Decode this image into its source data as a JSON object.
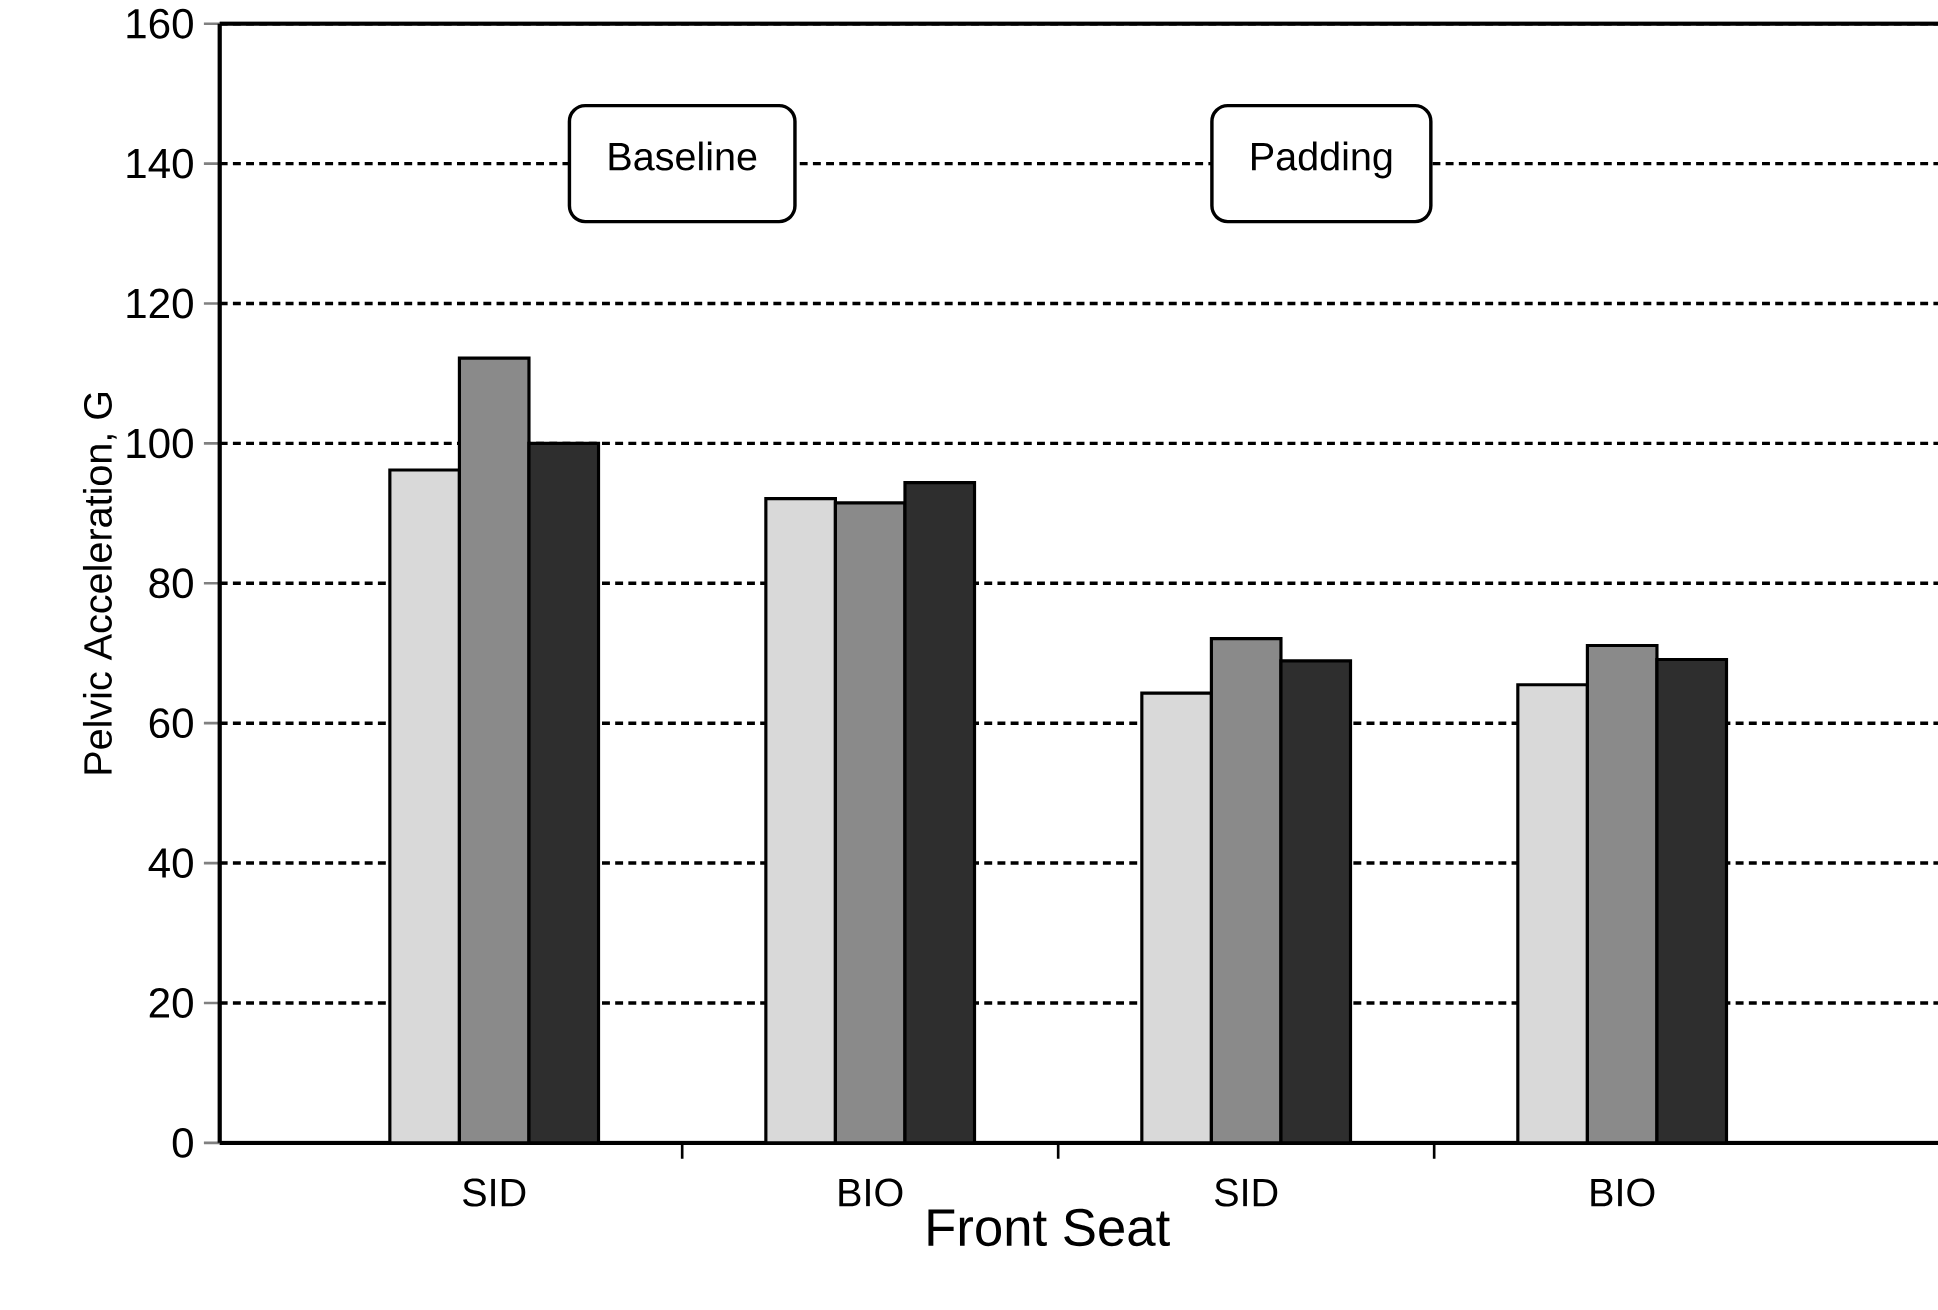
{
  "chart_data": {
    "type": "bar",
    "xlabel": "Front Seat",
    "ylabel": "Pelvic Acceleration, G",
    "categories": [
      "SID",
      "BIO",
      "SID",
      "BIO"
    ],
    "series": [
      {
        "color": "#d9d9d9",
        "values": [
          96.2,
          92.1,
          64.3,
          65.5
        ]
      },
      {
        "color": "#8a8a8a",
        "values": [
          112.2,
          91.5,
          72.1,
          71.1
        ]
      },
      {
        "color": "#2e2e2e",
        "values": [
          100,
          94.4,
          68.9,
          69.1
        ]
      }
    ],
    "ylim": [
      0,
      160
    ],
    "yticks": [
      0,
      20,
      40,
      60,
      80,
      100,
      120,
      140,
      160
    ],
    "grid": "y",
    "annotations": [
      "Baseline",
      "Padding"
    ]
  }
}
